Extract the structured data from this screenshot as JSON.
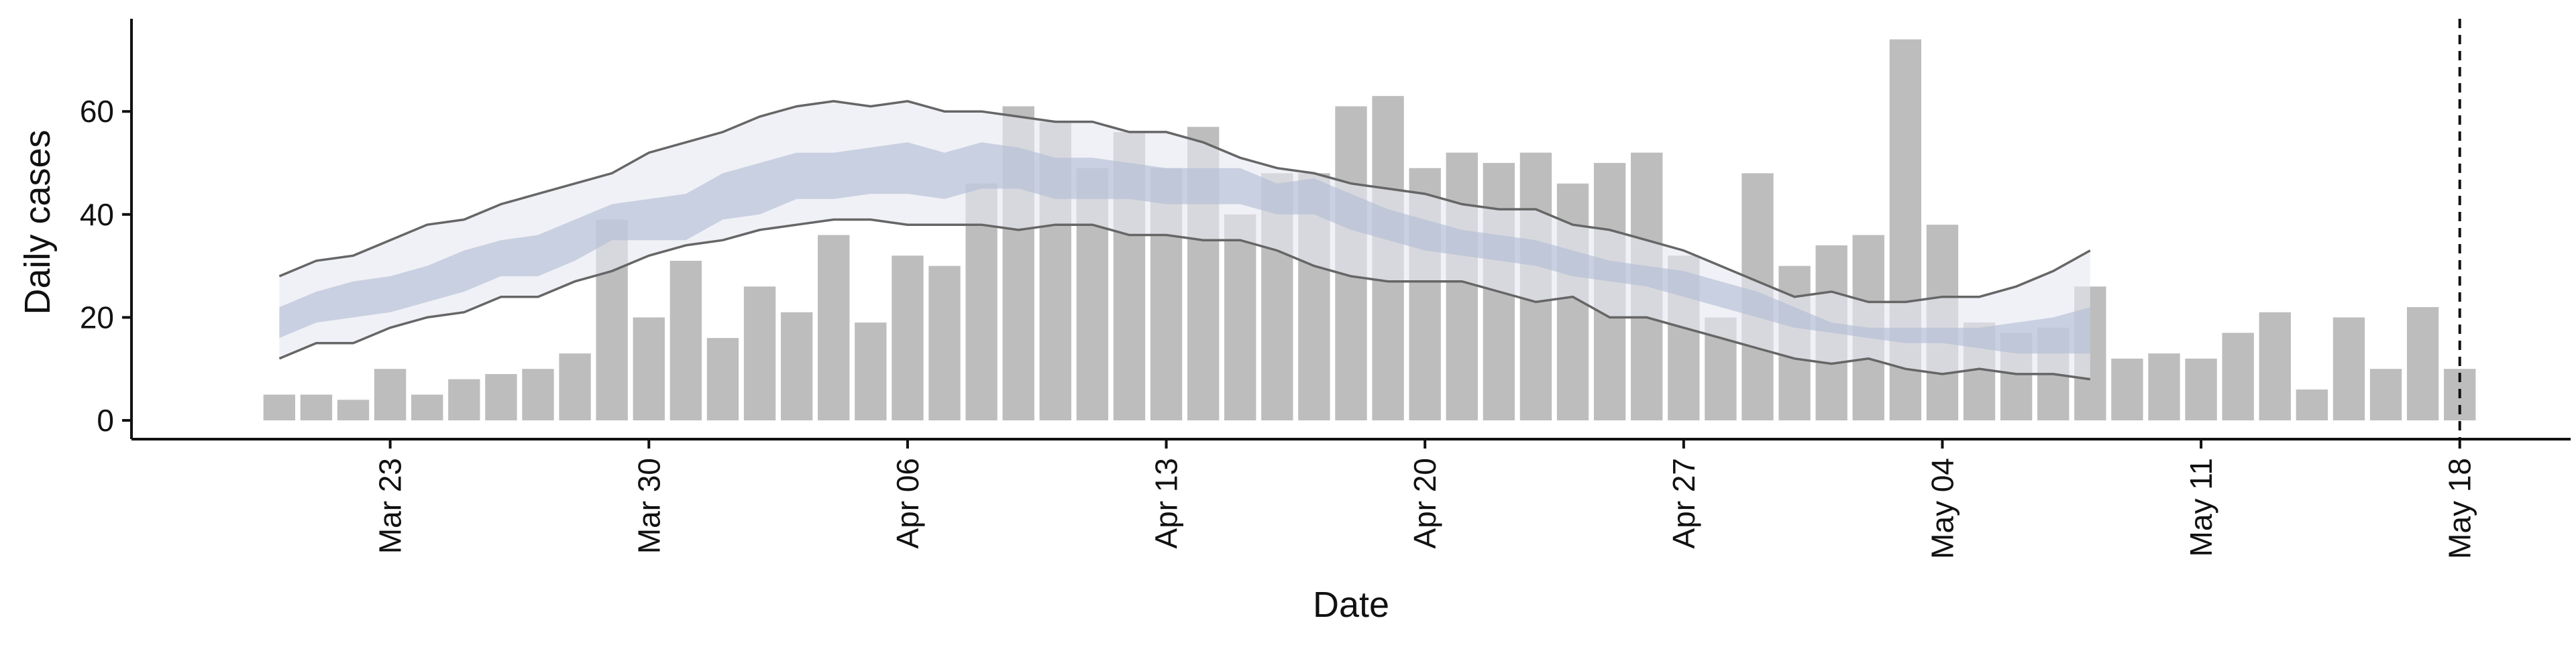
{
  "chart_data": {
    "type": "bar",
    "xlabel": "Date",
    "ylabel": "Daily cases",
    "ylim": [
      0,
      78
    ],
    "y_ticks": [
      0,
      20,
      40,
      60
    ],
    "x_ticks": [
      {
        "date": "2020-03-23",
        "label": "Mar 23"
      },
      {
        "date": "2020-03-30",
        "label": "Mar 30"
      },
      {
        "date": "2020-04-06",
        "label": "Apr 06"
      },
      {
        "date": "2020-04-13",
        "label": "Apr 13"
      },
      {
        "date": "2020-04-20",
        "label": "Apr 20"
      },
      {
        "date": "2020-04-27",
        "label": "Apr 27"
      },
      {
        "date": "2020-05-04",
        "label": "May 04"
      },
      {
        "date": "2020-05-11",
        "label": "May 11"
      },
      {
        "date": "2020-05-18",
        "label": "May 18"
      }
    ],
    "x_range": [
      "2020-03-16",
      "2020-05-21"
    ],
    "vline_date": "2020-05-18",
    "grid": false,
    "colors": {
      "bars": "#bdbdbd",
      "outer_band": "#e6e8f0",
      "inner_band": "#b3bed6",
      "bounds_line": "#666666",
      "axis": "#111111",
      "vline": "#111111"
    },
    "observed": {
      "start": "2020-03-20",
      "values": [
        5,
        5,
        4,
        10,
        5,
        8,
        9,
        10,
        13,
        39,
        20,
        31,
        16,
        26,
        21,
        36,
        19,
        32,
        30,
        46,
        61,
        58,
        49,
        56,
        49,
        57,
        40,
        48,
        48,
        61,
        63,
        49,
        52,
        50,
        52,
        46,
        50,
        52,
        32,
        20,
        48,
        30,
        34,
        36,
        74,
        38,
        19,
        17,
        18,
        26,
        12,
        13,
        12,
        17,
        21,
        6,
        20,
        10,
        22,
        10
      ]
    },
    "estimate": {
      "start": "2020-03-20",
      "upper_90": [
        28,
        31,
        32,
        35,
        38,
        39,
        42,
        44,
        46,
        48,
        52,
        54,
        56,
        59,
        61,
        62,
        61,
        62,
        60,
        60,
        59,
        58,
        58,
        56,
        56,
        54,
        51,
        49,
        48,
        46,
        45,
        44,
        42,
        41,
        41,
        38,
        37,
        35,
        33,
        30,
        27,
        24,
        25,
        23,
        23,
        24,
        24,
        26,
        29,
        33
      ],
      "upper_50": [
        22,
        25,
        27,
        28,
        30,
        33,
        35,
        36,
        39,
        42,
        43,
        44,
        48,
        50,
        52,
        52,
        53,
        54,
        52,
        54,
        53,
        51,
        51,
        50,
        49,
        49,
        49,
        46,
        47,
        44,
        41,
        39,
        37,
        36,
        35,
        33,
        31,
        30,
        29,
        27,
        25,
        22,
        19,
        18,
        18,
        18,
        18,
        19,
        20,
        22
      ],
      "lower_50": [
        16,
        19,
        20,
        21,
        23,
        25,
        28,
        28,
        31,
        35,
        35,
        35,
        39,
        40,
        43,
        43,
        44,
        44,
        43,
        45,
        45,
        43,
        43,
        43,
        42,
        42,
        42,
        40,
        40,
        37,
        35,
        33,
        32,
        31,
        30,
        28,
        27,
        26,
        24,
        22,
        20,
        18,
        17,
        16,
        15,
        15,
        14,
        13,
        13,
        13
      ],
      "lower_90": [
        12,
        15,
        15,
        18,
        20,
        21,
        24,
        24,
        27,
        29,
        32,
        34,
        35,
        37,
        38,
        39,
        39,
        38,
        38,
        38,
        37,
        38,
        38,
        36,
        36,
        35,
        35,
        33,
        30,
        28,
        27,
        27,
        27,
        25,
        23,
        24,
        20,
        20,
        18,
        16,
        14,
        12,
        11,
        12,
        10,
        9,
        10,
        9,
        9,
        8
      ]
    }
  }
}
